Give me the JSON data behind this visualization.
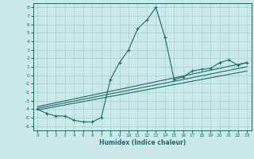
{
  "xlabel": "Humidex (Indice chaleur)",
  "bg_color": "#cce9e9",
  "grid_color": "#aad4d4",
  "line_color": "#1a6b6b",
  "xlim": [
    -0.5,
    23.5
  ],
  "ylim": [
    -6.5,
    8.5
  ],
  "xticks": [
    0,
    1,
    2,
    3,
    4,
    5,
    6,
    7,
    8,
    9,
    10,
    11,
    12,
    13,
    14,
    15,
    16,
    17,
    18,
    19,
    20,
    21,
    22,
    23
  ],
  "yticks": [
    -6,
    -5,
    -4,
    -3,
    -2,
    -1,
    0,
    1,
    2,
    3,
    4,
    5,
    6,
    7,
    8
  ],
  "main_x": [
    0,
    1,
    2,
    3,
    4,
    5,
    6,
    7,
    8,
    9,
    10,
    11,
    12,
    13,
    14,
    15,
    16,
    17,
    18,
    19,
    20,
    21,
    22,
    23
  ],
  "main_y": [
    -4.0,
    -4.5,
    -4.8,
    -4.8,
    -5.3,
    -5.5,
    -5.5,
    -5.0,
    -0.5,
    1.5,
    3.0,
    5.5,
    6.5,
    8.0,
    4.5,
    -0.5,
    -0.2,
    0.5,
    0.7,
    0.8,
    1.5,
    1.8,
    1.2,
    1.5
  ],
  "trend1_x": [
    0,
    23
  ],
  "trend1_y": [
    -3.7,
    1.5
  ],
  "trend2_x": [
    0,
    23
  ],
  "trend2_y": [
    -3.9,
    1.0
  ],
  "trend3_x": [
    0,
    23
  ],
  "trend3_y": [
    -4.1,
    0.5
  ]
}
